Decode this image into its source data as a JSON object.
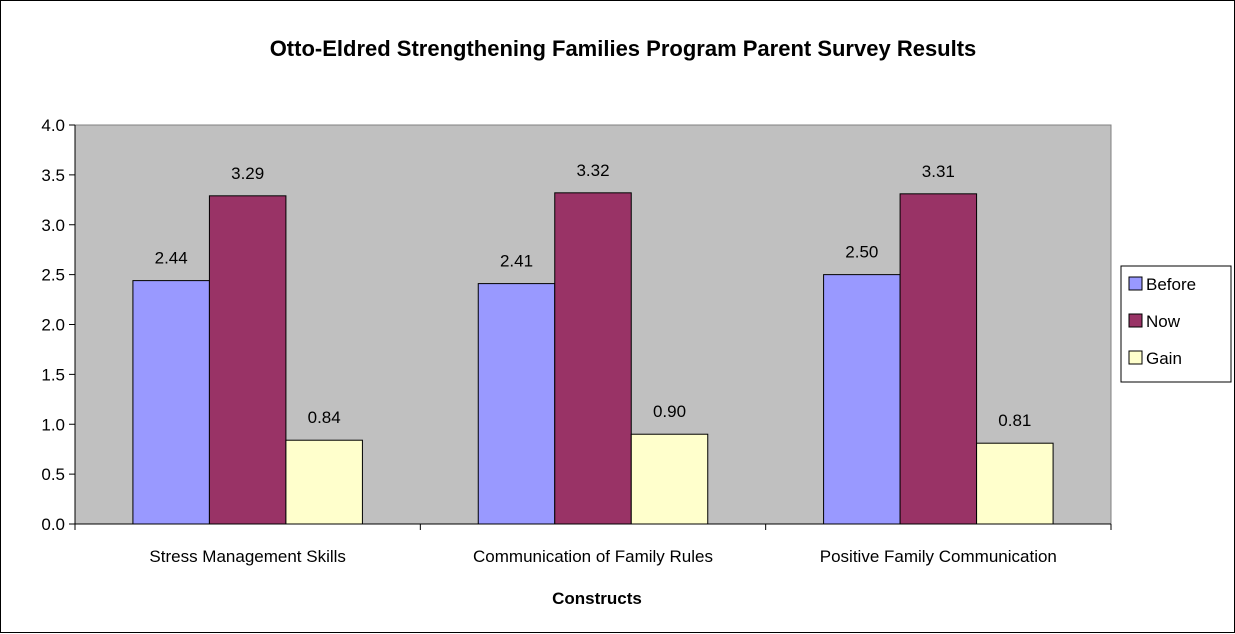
{
  "chart_data": {
    "type": "bar",
    "title": "Otto-Eldred Strengthening Families Program Parent Survey Results",
    "xlabel": "Constructs",
    "ylabel": "",
    "ylim": [
      0,
      4.0
    ],
    "ytick_step": 0.5,
    "ytick_labels": [
      "0.0",
      "0.5",
      "1.0",
      "1.5",
      "2.0",
      "2.5",
      "3.0",
      "3.5",
      "4.0"
    ],
    "categories": [
      "Stress Management Skills",
      "Communication of Family Rules",
      "Positive Family Communication"
    ],
    "series": [
      {
        "name": "Before",
        "color": "#9999ff",
        "values": [
          2.44,
          2.41,
          2.5
        ],
        "labels": [
          "2.44",
          "2.41",
          "2.50"
        ]
      },
      {
        "name": "Now",
        "color": "#993366",
        "values": [
          3.29,
          3.32,
          3.31
        ],
        "labels": [
          "3.29",
          "3.32",
          "3.31"
        ]
      },
      {
        "name": "Gain",
        "color": "#ffffcc",
        "values": [
          0.84,
          0.9,
          0.81
        ],
        "labels": [
          "0.84",
          "0.90",
          "0.81"
        ]
      }
    ],
    "plot_background": "#c0c0c0",
    "grid": false,
    "legend_position": "right"
  }
}
